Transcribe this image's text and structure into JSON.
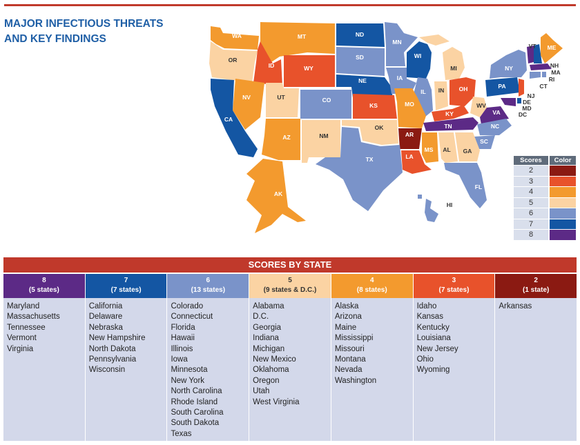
{
  "title_lines": [
    "MAJOR INFECTIOUS THREATS",
    "AND KEY FINDINGS"
  ],
  "legend": {
    "header_scores": "Scores",
    "header_color": "Color",
    "rows": [
      {
        "score": "2",
        "color": "#8b1a12"
      },
      {
        "score": "3",
        "color": "#e8522b"
      },
      {
        "score": "4",
        "color": "#f39a2e"
      },
      {
        "score": "5",
        "color": "#fbd3a3"
      },
      {
        "score": "6",
        "color": "#7a93c9"
      },
      {
        "score": "7",
        "color": "#1456a3"
      },
      {
        "score": "8",
        "color": "#5c2a86"
      }
    ]
  },
  "map_labels": [
    "WA",
    "MT",
    "ND",
    "MN",
    "OR",
    "ID",
    "WY",
    "SD",
    "WI",
    "MI",
    "NY",
    "VT",
    "NH",
    "ME",
    "MA",
    "RI",
    "CT",
    "NJ",
    "DE",
    "MD",
    "DC",
    "PA",
    "OH",
    "IN",
    "IL",
    "IA",
    "NE",
    "NV",
    "UT",
    "CO",
    "KS",
    "MO",
    "KY",
    "WV",
    "VA",
    "CA",
    "AZ",
    "NM",
    "OK",
    "AR",
    "TN",
    "NC",
    "SC",
    "GA",
    "AL",
    "MS",
    "LA",
    "TX",
    "FL",
    "AK",
    "HI"
  ],
  "banner": "SCORES BY STATE",
  "columns": [
    {
      "score": "8",
      "count": "(5 states)",
      "color": "#5c2a86",
      "states": [
        "Maryland",
        "Massachusetts",
        "Tennessee",
        "Vermont",
        "Virginia"
      ]
    },
    {
      "score": "7",
      "count": "(7 states)",
      "color": "#1456a3",
      "states": [
        "California",
        "Delaware",
        "Nebraska",
        "New Hampshire",
        "North Dakota",
        "Pennsylvania",
        "Wisconsin"
      ]
    },
    {
      "score": "6",
      "count": "(13 states)",
      "color": "#7a93c9",
      "states": [
        "Colorado",
        "Connecticut",
        "Florida",
        "Hawaii",
        "Illinois",
        "Iowa",
        "Minnesota",
        "New York",
        "North Carolina",
        "Rhode Island",
        "South Carolina",
        "South Dakota",
        "Texas"
      ]
    },
    {
      "score": "5",
      "count": "(9 states & D.C.)",
      "color": "#fbd3a3",
      "states": [
        "Alabama",
        "D.C.",
        "Georgia",
        "Indiana",
        "Michigan",
        "New Mexico",
        "Oklahoma",
        "Oregon",
        "Utah",
        "West Virginia"
      ]
    },
    {
      "score": "4",
      "count": "(8 states)",
      "color": "#f39a2e",
      "states": [
        "Alaska",
        "Arizona",
        "Maine",
        "Mississippi",
        "Missouri",
        "Montana",
        "Nevada",
        "Washington"
      ]
    },
    {
      "score": "3",
      "count": "(7 states)",
      "color": "#e8522b",
      "states": [
        "Idaho",
        "Kansas",
        "Kentucky",
        "Louisiana",
        "New Jersey",
        "Ohio",
        "Wyoming"
      ]
    },
    {
      "score": "2",
      "count": "(1 state)",
      "color": "#8b1a12",
      "states": [
        "Arkansas"
      ]
    }
  ]
}
